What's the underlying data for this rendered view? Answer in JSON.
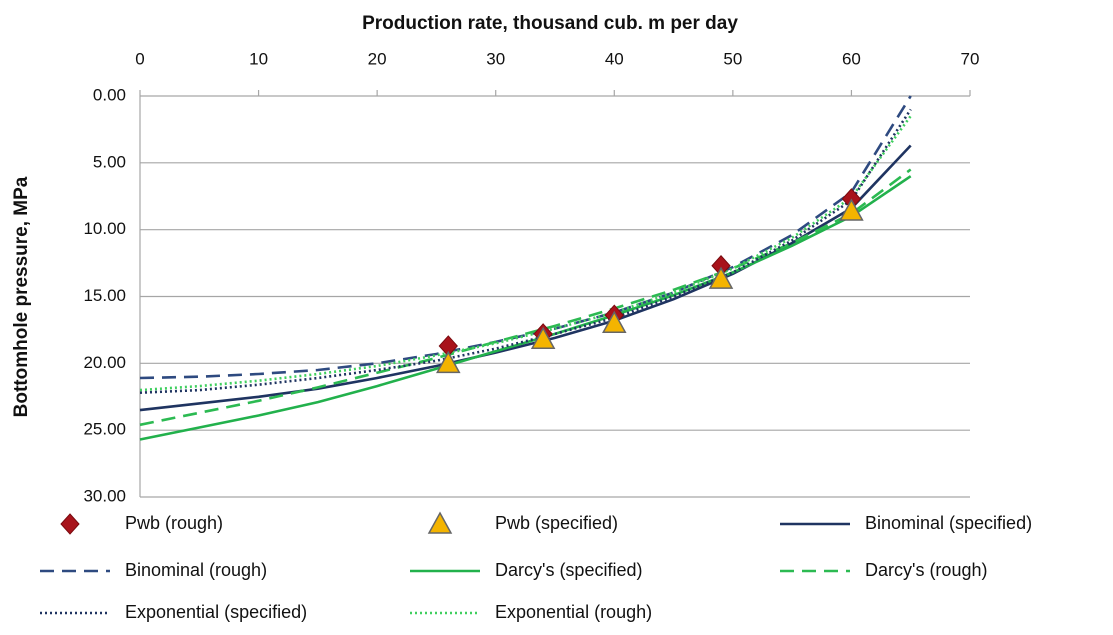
{
  "chart_data": {
    "type": "line",
    "title": "Production rate, thousand cub. m per day",
    "y_label": "Bottomhole pressure, MPa",
    "xlim": [
      0,
      70
    ],
    "xticks": [
      0,
      10,
      20,
      30,
      40,
      50,
      60,
      70
    ],
    "ylim": [
      0,
      30
    ],
    "y_inverted": true,
    "yticks": [
      {
        "value": 0,
        "label": "0.00"
      },
      {
        "value": 5,
        "label": "5.00"
      },
      {
        "value": 10,
        "label": "10.00"
      },
      {
        "value": 15,
        "label": "15.00"
      },
      {
        "value": 20,
        "label": "20.00"
      },
      {
        "value": 25,
        "label": "25.00"
      },
      {
        "value": 30,
        "label": "30.00"
      }
    ],
    "grid": true,
    "legend": "bottom",
    "series": [
      {
        "name": "Pwb (rough)",
        "color": "#a8131b",
        "marker": "diamond",
        "x": [
          26,
          34,
          40,
          49,
          60
        ],
        "values": [
          18.7,
          17.8,
          16.4,
          12.7,
          7.7
        ]
      },
      {
        "name": "Pwb (specified)",
        "color": "#f4b400",
        "marker": "triangle",
        "x": [
          26,
          34,
          40,
          49,
          60
        ],
        "values": [
          20.0,
          18.2,
          17.0,
          13.7,
          8.6
        ]
      },
      {
        "name": "Binominal (specified)",
        "color": "#1f3461",
        "dash": "solid",
        "x": [
          0,
          5,
          10,
          15,
          20,
          25,
          30,
          35,
          40,
          45,
          50,
          55,
          60,
          65
        ],
        "values": [
          23.5,
          23.0,
          22.5,
          21.9,
          21.1,
          20.2,
          19.2,
          18.1,
          16.8,
          15.2,
          13.3,
          11.0,
          8.4,
          3.7
        ]
      },
      {
        "name": "Binominal (rough)",
        "color": "#2e4a80",
        "dash": "dash",
        "x": [
          0,
          5,
          10,
          15,
          20,
          25,
          30,
          35,
          40,
          45,
          50,
          55,
          60,
          65
        ],
        "values": [
          21.1,
          21.0,
          20.8,
          20.5,
          20.0,
          19.3,
          18.4,
          17.4,
          16.2,
          14.7,
          12.8,
          10.4,
          7.2,
          0.0
        ]
      },
      {
        "name": "Darcy's (specified)",
        "color": "#22b14c",
        "dash": "solid",
        "x": [
          0,
          5,
          10,
          15,
          20,
          25,
          30,
          35,
          40,
          45,
          50,
          55,
          60,
          65
        ],
        "values": [
          25.7,
          24.8,
          23.9,
          22.9,
          21.7,
          20.4,
          19.1,
          17.8,
          16.4,
          14.9,
          13.2,
          11.2,
          9.0,
          6.0
        ]
      },
      {
        "name": "Darcy's (rough)",
        "color": "#2cba52",
        "dash": "dash",
        "x": [
          0,
          5,
          10,
          15,
          20,
          25,
          30,
          35,
          40,
          45,
          50,
          55,
          60,
          65
        ],
        "values": [
          24.6,
          23.7,
          22.8,
          21.8,
          20.7,
          19.6,
          18.4,
          17.2,
          15.9,
          14.5,
          12.9,
          11.0,
          8.8,
          5.5
        ]
      },
      {
        "name": "Exponential (specified)",
        "color": "#1f3461",
        "dash": "dot",
        "x": [
          0,
          5,
          10,
          15,
          20,
          25,
          30,
          35,
          40,
          45,
          50,
          55,
          60,
          65
        ],
        "values": [
          22.2,
          22.0,
          21.6,
          21.1,
          20.5,
          19.8,
          18.9,
          17.8,
          16.6,
          15.0,
          13.2,
          10.8,
          7.8,
          1.0
        ]
      },
      {
        "name": "Exponential (rough)",
        "color": "#3fcf5e",
        "dash": "dot",
        "x": [
          0,
          5,
          10,
          15,
          20,
          25,
          30,
          35,
          40,
          45,
          50,
          55,
          60,
          65
        ],
        "values": [
          22.0,
          21.7,
          21.3,
          20.8,
          20.2,
          19.4,
          18.5,
          17.4,
          16.2,
          14.7,
          12.9,
          10.6,
          7.6,
          1.5
        ]
      }
    ]
  }
}
